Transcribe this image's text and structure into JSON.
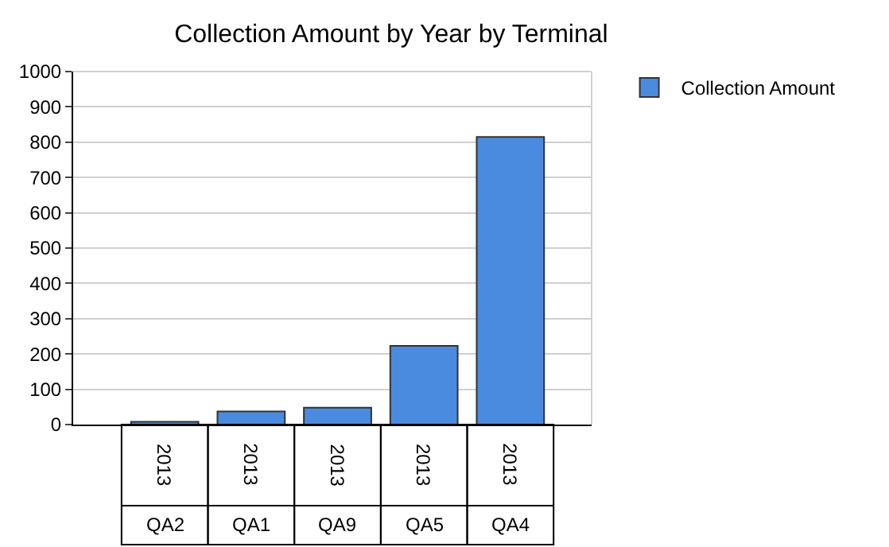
{
  "chart_data": {
    "type": "bar",
    "title": "Collection Amount by Year by Terminal",
    "categories": [
      "QA2",
      "QA1",
      "QA9",
      "QA5",
      "QA4"
    ],
    "series": [
      {
        "name": "Collection Amount",
        "color": "#4a8be0",
        "values": [
          8,
          37,
          48,
          223,
          815
        ]
      }
    ],
    "annotations": [
      "2013",
      "2013",
      "2013",
      "2013",
      "2013"
    ],
    "ylim": [
      0,
      1000
    ],
    "yticks": [
      0,
      100,
      200,
      300,
      400,
      500,
      600,
      700,
      800,
      900,
      1000
    ],
    "grid": "y",
    "legend": "top right"
  }
}
